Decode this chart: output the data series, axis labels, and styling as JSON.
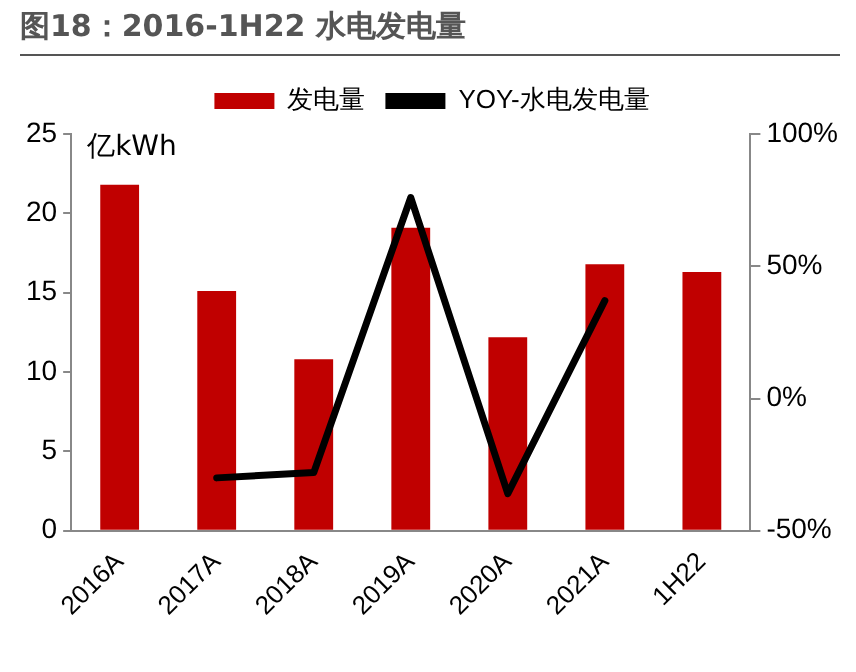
{
  "chart_data": {
    "type": "bar",
    "title": "图18：2016-1H22 水电发电量",
    "ylabel": "亿kWh",
    "categories": [
      "2016A",
      "2017A",
      "2018A",
      "2019A",
      "2020A",
      "2021A",
      "1H22"
    ],
    "series": [
      {
        "name": "发电量",
        "color": "#c00000",
        "values": [
          21.8,
          15.1,
          10.8,
          19.1,
          12.2,
          16.8,
          16.3
        ]
      },
      {
        "name": "YOY-水电发电量",
        "type": "line",
        "axis": "y2",
        "color": "#000000",
        "values": [
          null,
          -30,
          -28,
          76,
          -36,
          37,
          null
        ]
      }
    ],
    "ylim": [
      0,
      25
    ],
    "yticks": [
      0,
      5,
      10,
      15,
      20,
      25
    ],
    "y2lim": [
      -50,
      100
    ],
    "y2ticks": [
      {
        "value": -50,
        "label": "-50%"
      },
      {
        "value": 0,
        "label": "0%"
      },
      {
        "value": 50,
        "label": "50%"
      },
      {
        "value": 100,
        "label": "100%"
      }
    ],
    "legend": "top",
    "grid": false,
    "marker": "none",
    "line_style": "solid"
  }
}
